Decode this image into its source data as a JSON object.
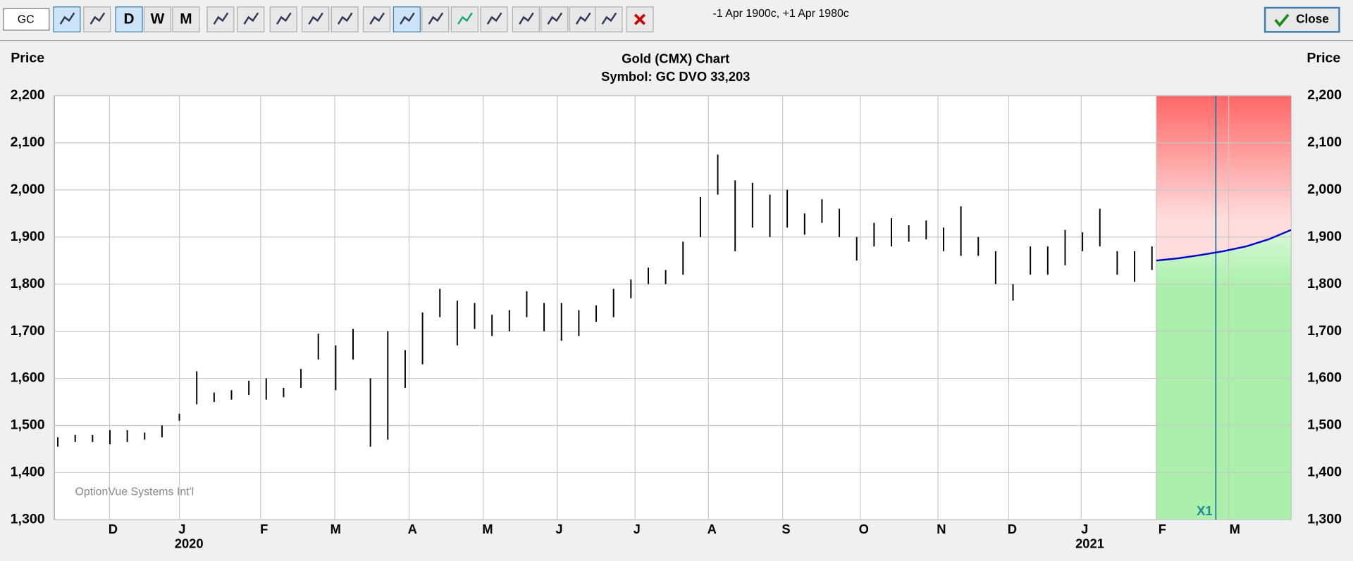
{
  "toolbar": {
    "symbol": "GC",
    "periods": [
      "D",
      "W",
      "M"
    ],
    "range": "-1 Apr 1900c, +1 Apr 1980c",
    "close": "Close"
  },
  "chart_data": {
    "type": "ohlc",
    "title": "Gold (CMX) Chart",
    "subtitle": "Symbol: GC  DVO 33,203",
    "y_label": "Price",
    "watermark": "OptionVue Systems Int'l",
    "months": [
      "D",
      "J",
      "F",
      "M",
      "A",
      "M",
      "J",
      "J",
      "A",
      "S",
      "O",
      "N",
      "D",
      "J",
      "F",
      "M"
    ],
    "years": [
      "2020",
      "2021"
    ],
    "ylim": [
      1300,
      2200
    ],
    "yticks": [
      {
        "value": 1300,
        "label": "1,300"
      },
      {
        "value": 1400,
        "label": "1,400"
      },
      {
        "value": 1500,
        "label": "1,500"
      },
      {
        "value": 1600,
        "label": "1,600"
      },
      {
        "value": 1700,
        "label": "1,700"
      },
      {
        "value": 1800,
        "label": "1,800"
      },
      {
        "value": 1900,
        "label": "1,900"
      },
      {
        "value": 2000,
        "label": "2,000"
      },
      {
        "value": 2100,
        "label": "2,100"
      },
      {
        "value": 2200,
        "label": "2,200"
      }
    ],
    "high": [
      1475,
      1480,
      1480,
      1490,
      1490,
      1485,
      1500,
      1525,
      1615,
      1570,
      1575,
      1595,
      1600,
      1580,
      1620,
      1695,
      1670,
      1705,
      1600,
      1700,
      1660,
      1740,
      1790,
      1765,
      1760,
      1735,
      1745,
      1785,
      1760,
      1760,
      1745,
      1755,
      1790,
      1810,
      1835,
      1830,
      1890,
      1985,
      2075,
      2020,
      2015,
      1990,
      2000,
      1950,
      1980,
      1960,
      1900,
      1930,
      1940,
      1925,
      1935,
      1920,
      1965,
      1900,
      1870,
      1800,
      1880,
      1880,
      1915,
      1910,
      1960,
      1870,
      1870,
      1880
    ],
    "low": [
      1455,
      1465,
      1465,
      1460,
      1465,
      1470,
      1475,
      1510,
      1545,
      1550,
      1555,
      1565,
      1555,
      1560,
      1580,
      1640,
      1575,
      1640,
      1455,
      1470,
      1580,
      1630,
      1730,
      1670,
      1705,
      1690,
      1700,
      1730,
      1700,
      1680,
      1690,
      1720,
      1730,
      1770,
      1800,
      1800,
      1820,
      1900,
      1990,
      1870,
      1920,
      1900,
      1920,
      1905,
      1930,
      1900,
      1850,
      1880,
      1880,
      1890,
      1895,
      1870,
      1860,
      1860,
      1800,
      1765,
      1820,
      1820,
      1840,
      1870,
      1880,
      1820,
      1805,
      1830
    ],
    "projection": {
      "color": "#0000cc",
      "values": [
        1850,
        1855,
        1862,
        1870,
        1880,
        1895,
        1915
      ]
    },
    "marker": "X1",
    "grid": true
  }
}
